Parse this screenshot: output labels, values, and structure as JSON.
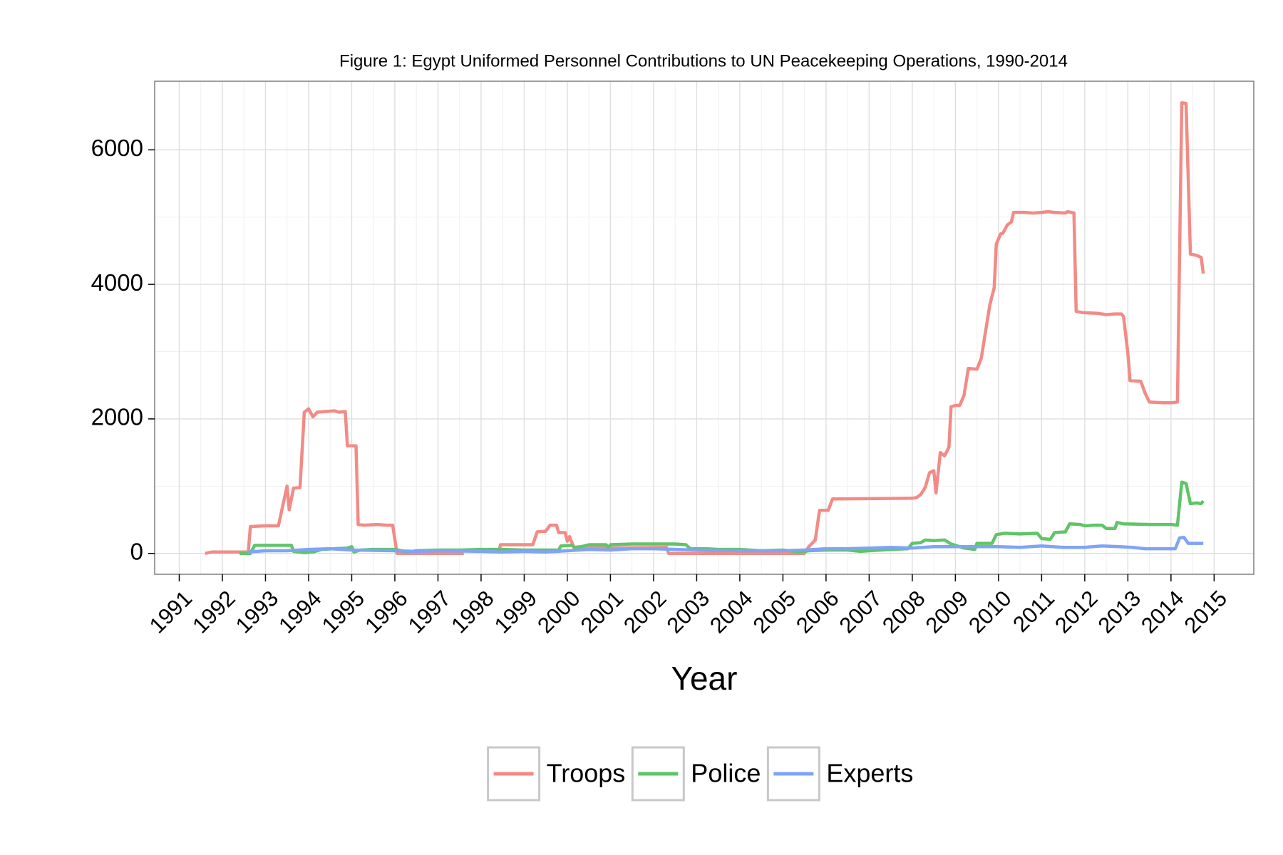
{
  "chart_data": {
    "type": "line",
    "title": "Figure 1: Egypt Uniformed Personnel Contributions to UN Peacekeeping Operations, 1990-2014",
    "x_label": "Year",
    "xlim": [
      1990.43,
      2015.92
    ],
    "xticks": [
      1991,
      1992,
      1993,
      1994,
      1995,
      1996,
      1997,
      1998,
      1999,
      2000,
      2001,
      2002,
      2003,
      2004,
      2005,
      2006,
      2007,
      2008,
      2009,
      2010,
      2011,
      2012,
      2013,
      2014,
      2015
    ],
    "ylim": [
      -310,
      7020
    ],
    "yticks": [
      0,
      2000,
      4000,
      6000
    ],
    "grid": true,
    "legend": "bottom",
    "series": [
      {
        "name": "Troops",
        "color": "#f28b86",
        "x": [
          1991.6,
          1991.75,
          1992.6,
          1992.65,
          1993.0,
          1993.3,
          1993.5,
          1993.55,
          1993.65,
          1993.8,
          1993.9,
          1994.0,
          1994.1,
          1994.2,
          1994.6,
          1994.7,
          1994.85,
          1994.9,
          1995.1,
          1995.15,
          1995.3,
          1995.6,
          1995.8,
          1995.95,
          1996.05,
          1997.6,
          1998.0,
          1998.4,
          1998.45,
          1999.2,
          1999.3,
          1999.5,
          1999.6,
          1999.75,
          1999.8,
          1999.95,
          2000.0,
          2000.05,
          2000.15,
          2000.3,
          2001.0,
          2002.3,
          2002.35,
          2005.5,
          2005.6,
          2005.75,
          2005.85,
          2006.05,
          2006.15,
          2008.0,
          2008.1,
          2008.2,
          2008.3,
          2008.4,
          2008.5,
          2008.55,
          2008.65,
          2008.75,
          2008.85,
          2008.9,
          2009.0,
          2009.1,
          2009.2,
          2009.3,
          2009.5,
          2009.6,
          2009.7,
          2009.8,
          2009.9,
          2009.95,
          2010.05,
          2010.1,
          2010.2,
          2010.3,
          2010.35,
          2010.6,
          2010.8,
          2011.0,
          2011.15,
          2011.3,
          2011.55,
          2011.6,
          2011.75,
          2011.8,
          2011.95,
          2012.3,
          2012.5,
          2012.7,
          2012.85,
          2012.9,
          2013.0,
          2013.05,
          2013.3,
          2013.4,
          2013.5,
          2013.8,
          2014.0,
          2014.15,
          2014.25,
          2014.35,
          2014.45,
          2014.6,
          2014.7,
          2014.75
        ],
        "values": [
          0,
          20,
          20,
          400,
          410,
          410,
          1000,
          650,
          970,
          980,
          2100,
          2150,
          2030,
          2100,
          2120,
          2100,
          2110,
          1600,
          1600,
          430,
          420,
          430,
          420,
          420,
          0,
          0,
          null,
          0,
          130,
          130,
          320,
          330,
          420,
          420,
          310,
          310,
          180,
          250,
          90,
          100,
          80,
          90,
          0,
          0,
          100,
          200,
          640,
          640,
          810,
          820,
          830,
          880,
          980,
          1200,
          1230,
          900,
          1500,
          1450,
          1580,
          2180,
          2200,
          2200,
          2350,
          2750,
          2740,
          2900,
          3300,
          3700,
          3950,
          4600,
          4750,
          4760,
          4880,
          4930,
          5070,
          5070,
          5060,
          5070,
          5080,
          5070,
          5060,
          5080,
          5060,
          3600,
          3580,
          3570,
          3550,
          3560,
          3560,
          3520,
          2970,
          2570,
          2560,
          2380,
          2250,
          2240,
          2240,
          2250,
          6700,
          6690,
          4450,
          4430,
          4400,
          4160
        ]
      },
      {
        "name": "Police",
        "color": "#5fc566",
        "x": [
          1992.4,
          1992.65,
          1992.75,
          1993.5,
          1993.6,
          1993.65,
          1993.9,
          1994.1,
          1994.3,
          1994.6,
          1994.9,
          1995.0,
          1995.05,
          1995.2,
          1995.5,
          1996.0,
          1996.3,
          1996.5,
          1997.0,
          1997.5,
          1998.0,
          1998.5,
          1999.0,
          1999.5,
          1999.8,
          1999.85,
          2000.1,
          2000.2,
          2000.5,
          2000.9,
          2000.95,
          2001.0,
          2001.5,
          2002.0,
          2002.5,
          2002.75,
          2002.85,
          2003.2,
          2003.5,
          2004.0,
          2004.5,
          2005.0,
          2005.4,
          2005.6,
          2006.0,
          2006.5,
          2006.8,
          2007.0,
          2007.5,
          2007.9,
          2008.0,
          2008.2,
          2008.3,
          2008.5,
          2008.75,
          2008.9,
          2009.2,
          2009.45,
          2009.5,
          2009.85,
          2009.95,
          2010.15,
          2010.5,
          2010.9,
          2011.0,
          2011.2,
          2011.3,
          2011.55,
          2011.65,
          2011.9,
          2012.0,
          2012.2,
          2012.4,
          2012.5,
          2012.7,
          2012.75,
          2012.9,
          2013.5,
          2014.0,
          2014.15,
          2014.25,
          2014.35,
          2014.45,
          2014.6,
          2014.7,
          2014.75
        ],
        "values": [
          0,
          0,
          120,
          120,
          120,
          30,
          10,
          20,
          60,
          70,
          80,
          100,
          20,
          50,
          60,
          60,
          20,
          40,
          50,
          50,
          60,
          60,
          50,
          50,
          50,
          110,
          120,
          80,
          130,
          130,
          80,
          130,
          140,
          140,
          140,
          130,
          70,
          70,
          60,
          60,
          40,
          50,
          20,
          40,
          50,
          50,
          30,
          40,
          60,
          70,
          150,
          160,
          200,
          190,
          200,
          140,
          80,
          60,
          150,
          150,
          280,
          300,
          290,
          300,
          220,
          210,
          310,
          320,
          440,
          430,
          410,
          420,
          420,
          370,
          370,
          460,
          440,
          430,
          430,
          420,
          1060,
          1040,
          740,
          750,
          740,
          780
        ]
      },
      {
        "name": "Experts",
        "color": "#7fa4f7",
        "x": [
          1992.6,
          1993.0,
          1993.5,
          1994.0,
          1994.5,
          1995.0,
          1996.0,
          1996.5,
          1997.0,
          1998.0,
          1998.5,
          1999.0,
          1999.5,
          2000.0,
          2000.5,
          2001.0,
          2001.5,
          2002.0,
          2002.5,
          2003.0,
          2004.0,
          2005.0,
          2005.5,
          2006.0,
          2006.5,
          2007.0,
          2007.5,
          2008.0,
          2008.5,
          2009.0,
          2009.5,
          2010.0,
          2010.5,
          2011.0,
          2011.5,
          2012.0,
          2012.4,
          2012.8,
          2013.1,
          2013.4,
          2013.8,
          2014.1,
          2014.2,
          2014.3,
          2014.4,
          2014.75
        ],
        "values": [
          20,
          40,
          40,
          60,
          70,
          50,
          40,
          30,
          40,
          30,
          20,
          30,
          20,
          40,
          60,
          50,
          70,
          70,
          60,
          50,
          40,
          40,
          50,
          70,
          70,
          80,
          90,
          80,
          100,
          100,
          100,
          100,
          90,
          110,
          90,
          90,
          110,
          100,
          90,
          70,
          70,
          70,
          230,
          240,
          150,
          150
        ]
      }
    ]
  }
}
